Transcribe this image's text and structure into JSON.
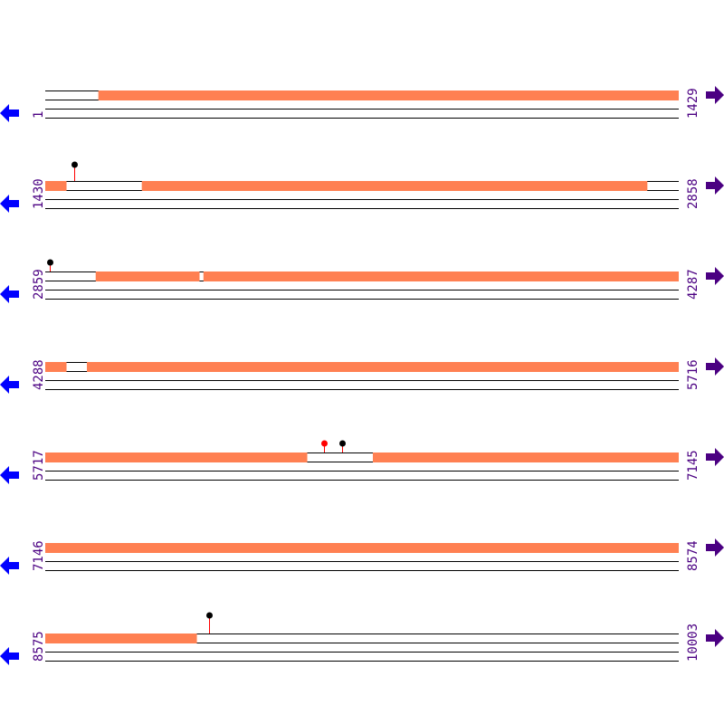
{
  "colors": {
    "feature": "#ff8052",
    "track_line": "#000000",
    "label": "#4b0082",
    "left_arrow": "#0000ff",
    "right_arrow": "#4b0082",
    "stem": "#ff0000",
    "marker_black": "#000000",
    "marker_red": "#ff0000"
  },
  "icons": {
    "left": "arrow-left-icon",
    "right": "arrow-right-icon"
  },
  "rows": [
    {
      "start": "1",
      "end": "1429",
      "features": [
        [
          121,
          1429
        ]
      ],
      "markers": []
    },
    {
      "start": "1430",
      "end": "2858",
      "features": [
        [
          1430,
          1477
        ],
        [
          1648,
          2787
        ]
      ],
      "markers": [
        {
          "pos": 1495,
          "color": "black"
        }
      ]
    },
    {
      "start": "2859",
      "end": "4287",
      "features": [
        [
          2973,
          3206
        ],
        [
          3216,
          4287
        ]
      ],
      "markers": [
        {
          "pos": 2869,
          "color": "black"
        }
      ]
    },
    {
      "start": "4288",
      "end": "5716",
      "features": [
        [
          4288,
          4335
        ],
        [
          4382,
          5716
        ]
      ],
      "markers": []
    },
    {
      "start": "5717",
      "end": "7145",
      "features": [
        [
          5717,
          6307
        ],
        [
          6456,
          7145
        ]
      ],
      "markers": [
        {
          "pos": 6346,
          "color": "red"
        },
        {
          "pos": 6386,
          "color": "black"
        }
      ]
    },
    {
      "start": "7146",
      "end": "8574",
      "features": [
        [
          7146,
          8574
        ]
      ],
      "markers": []
    },
    {
      "start": "8575",
      "end": "10003",
      "features": [
        [
          8575,
          8916
        ]
      ],
      "markers": [
        {
          "pos": 8944,
          "color": "black"
        }
      ]
    }
  ]
}
